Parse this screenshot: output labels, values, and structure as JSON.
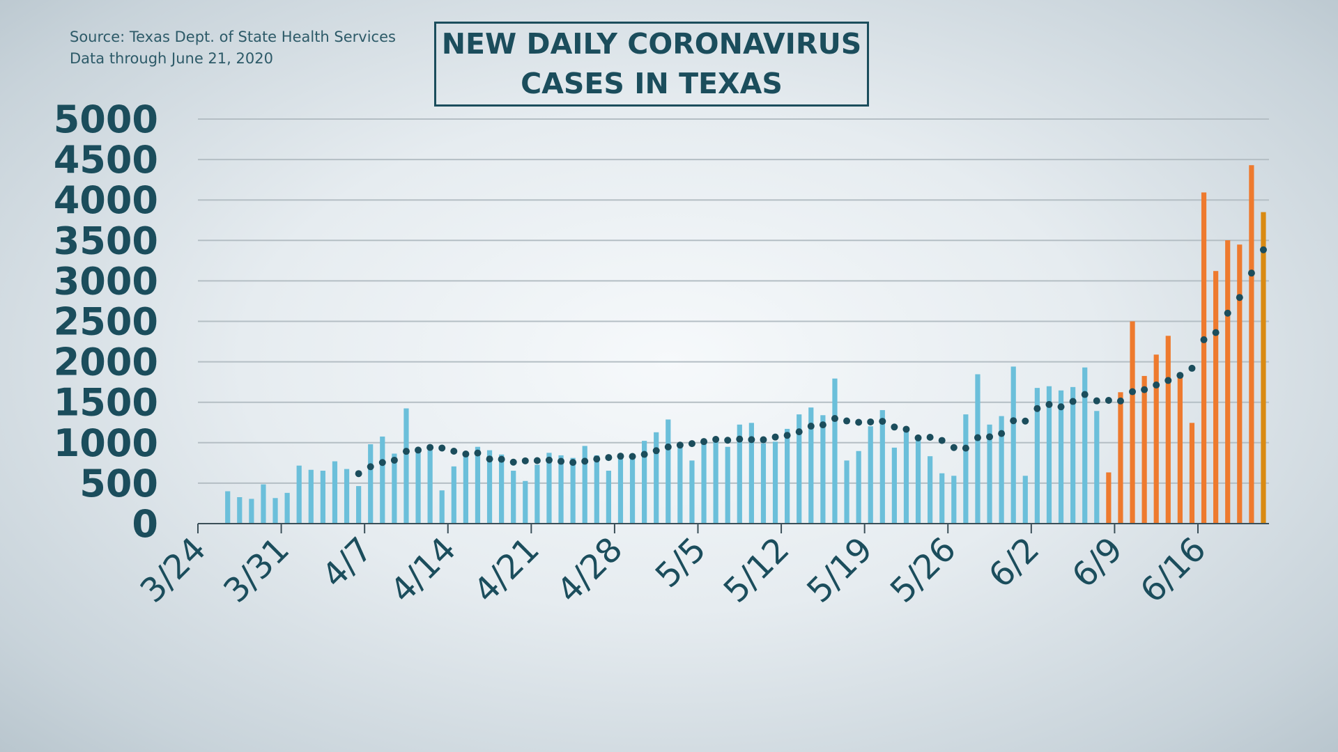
{
  "chart_data": {
    "type": "bar",
    "title": "NEW DAILY CORONAVIRUS\nCASES IN TEXAS",
    "source": "Source: Texas Dept. of State Health Services",
    "data_through": "Data through  June 21, 2020",
    "ylim": [
      0,
      5000
    ],
    "yticks": [
      "0",
      "500",
      "1000",
      "1500",
      "2000",
      "2500",
      "3000",
      "3500",
      "4000",
      "4500",
      "5000"
    ],
    "xticks": [
      "3/24",
      "3/31",
      "4/7",
      "4/14",
      "4/21",
      "4/28",
      "5/5",
      "5/12",
      "5/19",
      "5/26",
      "6/2",
      "6/9",
      "6/16"
    ],
    "x_start_date": "3/24",
    "first_bar_date": "3/26",
    "last_bar_date": "6/21",
    "grid": true,
    "colors": {
      "early": "#6bbfda",
      "recent": "#ee7a2e",
      "latest": "#d98a12",
      "trend": "#1b4d5c",
      "text": "#1b4d5c"
    },
    "values": [
      400,
      327,
      306,
      485,
      316,
      380,
      717,
      665,
      654,
      770,
      675,
      464,
      981,
      1076,
      865,
      1424,
      875,
      907,
      411,
      707,
      833,
      949,
      907,
      854,
      654,
      527,
      728,
      875,
      844,
      812,
      960,
      844,
      654,
      844,
      854,
      1023,
      1129,
      1287,
      1002,
      780,
      1023,
      1044,
      949,
      1224,
      1245,
      992,
      1013,
      1171,
      1350,
      1435,
      1340,
      1793,
      780,
      897,
      1203,
      1403,
      939,
      1150,
      1044,
      833,
      622,
      591,
      1350,
      1846,
      1224,
      1329,
      1941,
      591,
      1677,
      1698,
      1646,
      1688,
      1930,
      1392,
      633,
      1624,
      2500,
      1825,
      2089,
      2321,
      1835,
      1245,
      4093,
      3122,
      3502,
      3449,
      4430,
      3850
    ],
    "recent_from_date": "6/8",
    "trend_from_date": "4/6",
    "trend_window_days": 7
  }
}
